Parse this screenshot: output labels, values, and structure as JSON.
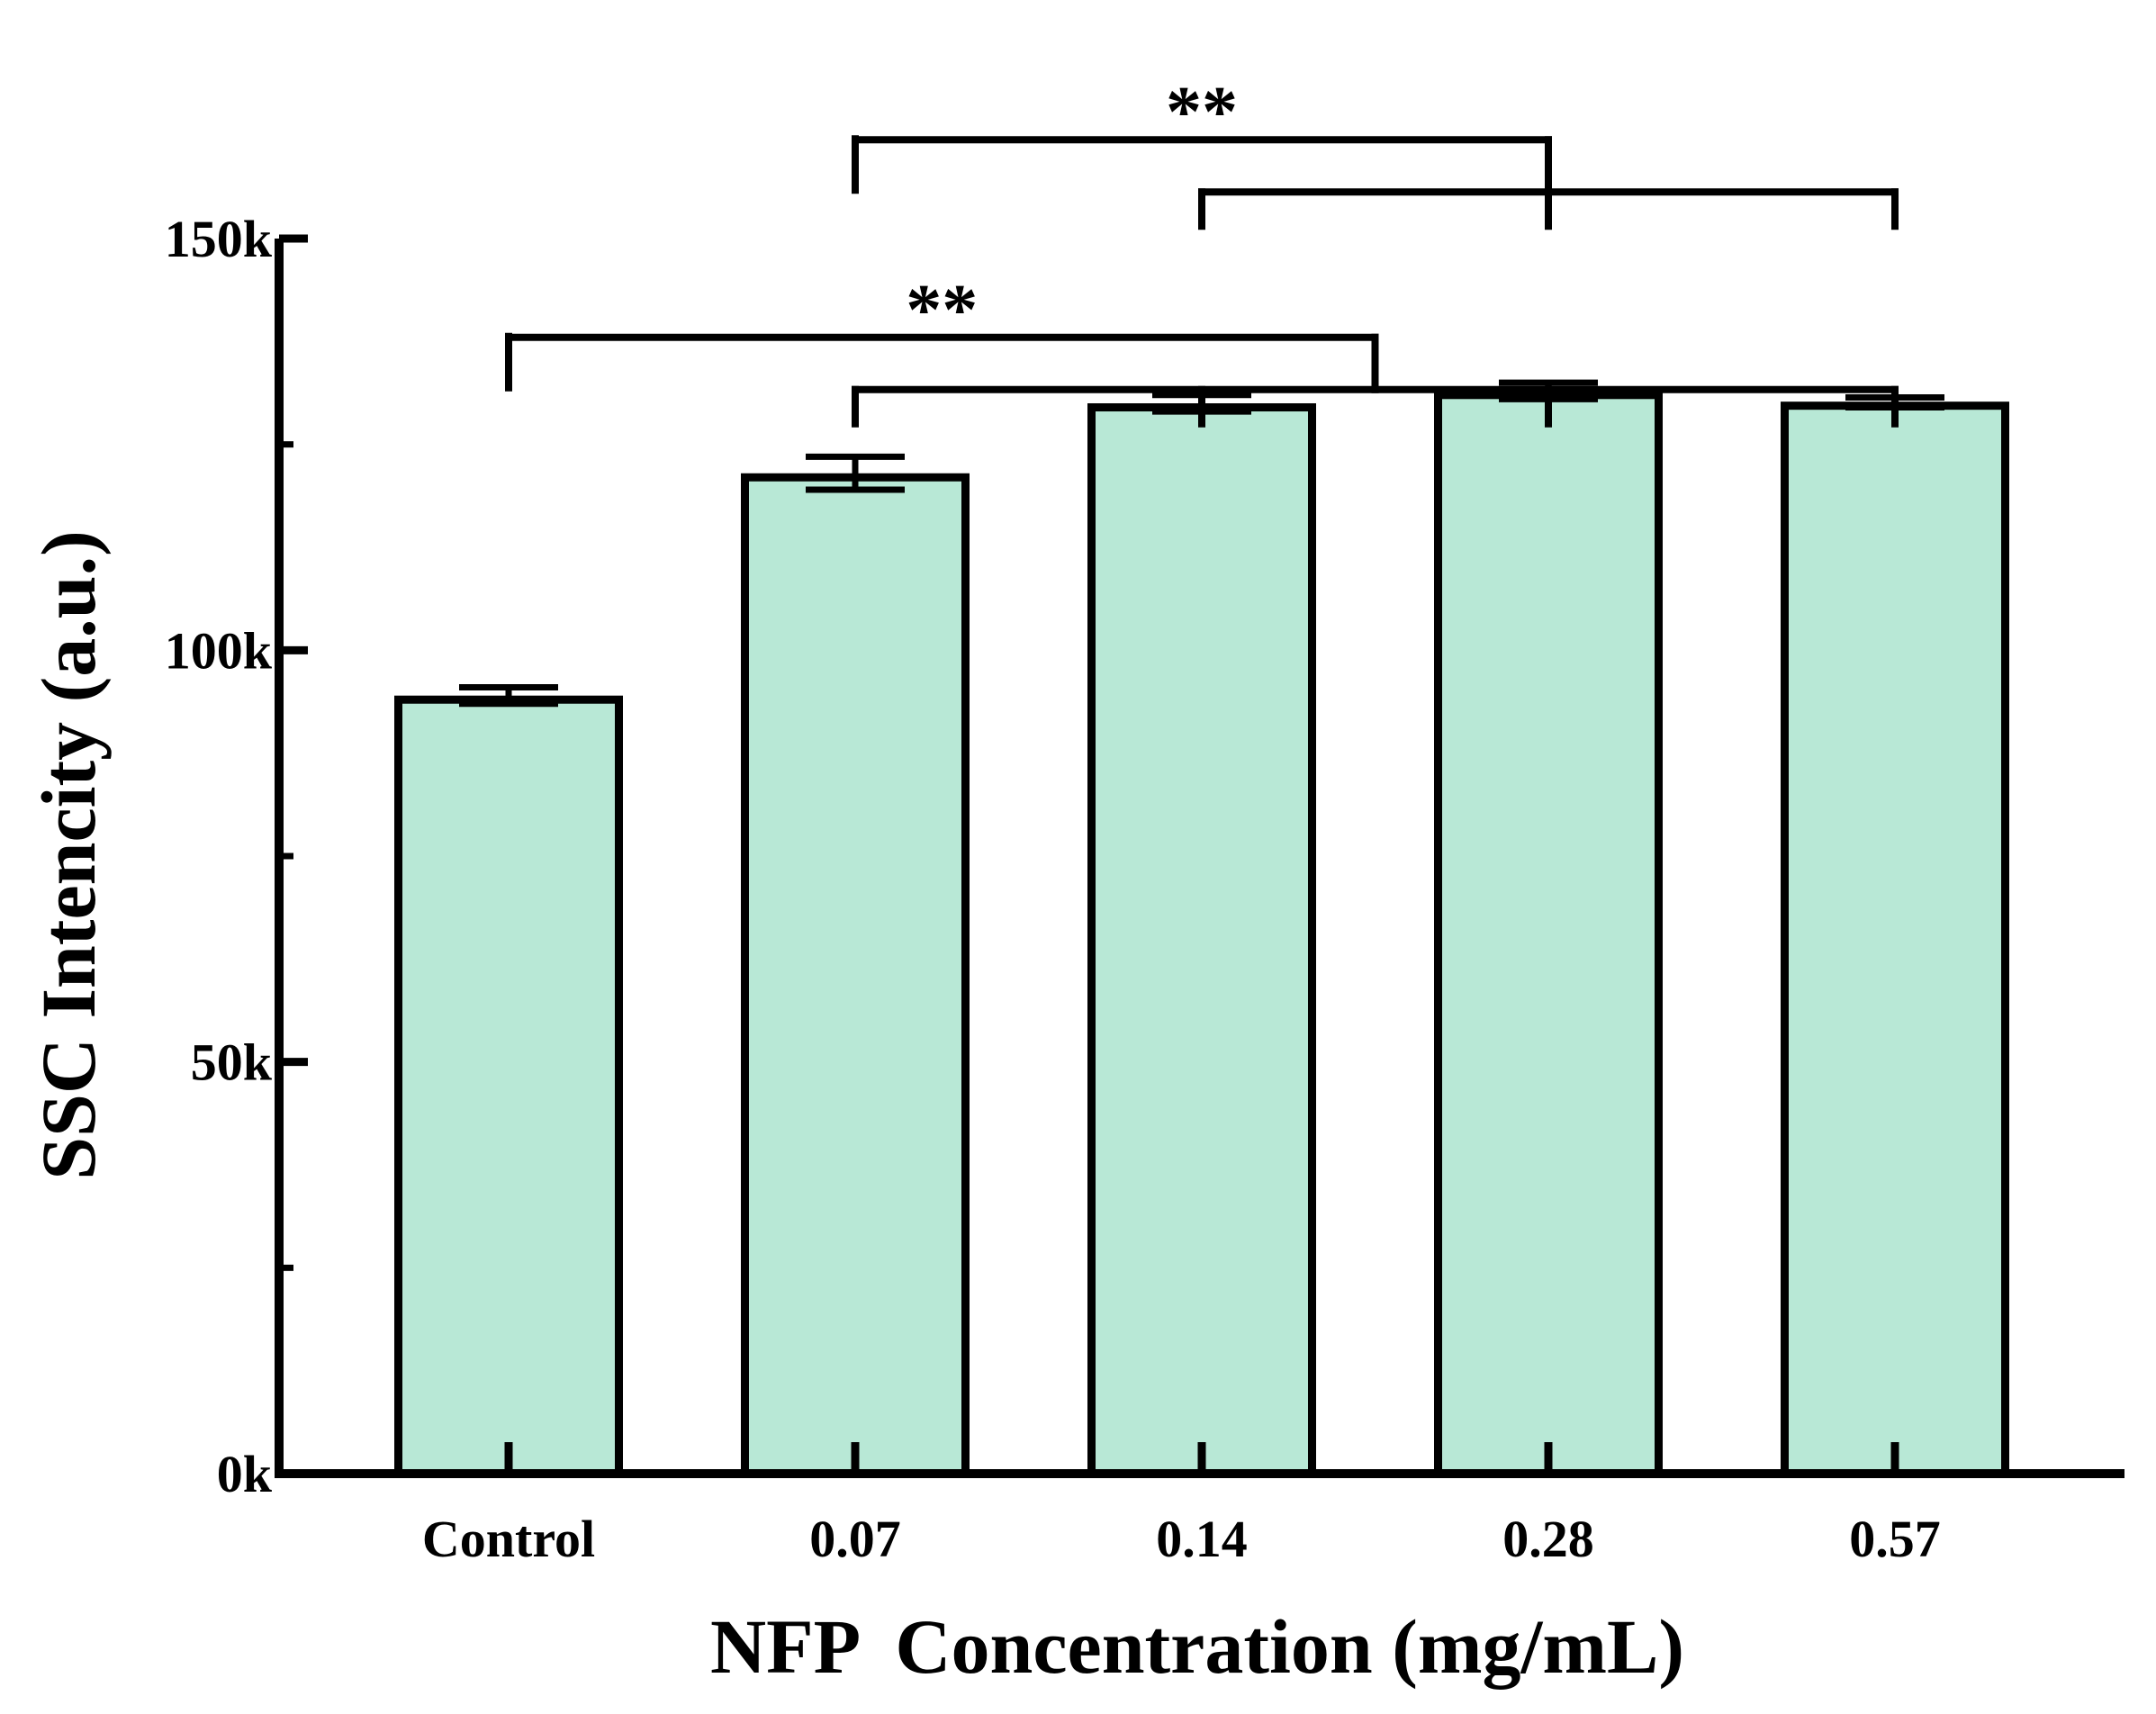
{
  "chart_data": {
    "type": "bar",
    "title": "",
    "xlabel": "NFP  Concentration (mg/mL)",
    "ylabel": "SSC Intencity (a.u.)",
    "categories": [
      "Control",
      "0.07",
      "0.14",
      "0.28",
      "0.57"
    ],
    "values": [
      94000,
      121000,
      129500,
      131000,
      129700
    ],
    "error_upper": [
      1500,
      2500,
      1500,
      1500,
      1000
    ],
    "error_lower": [
      500,
      1500,
      500,
      500,
      200
    ],
    "ylim": [
      0,
      150000
    ],
    "yticks": [
      0,
      50000,
      100000,
      150000
    ],
    "ytick_labels": [
      "0k",
      "50k",
      "100k",
      "150k"
    ],
    "minor_yticks": [
      25000,
      75000,
      125000
    ],
    "bar_color": "#b8e8d6",
    "edge_color": "#000000",
    "significance": [
      {
        "label": "**",
        "from": [
          0
        ],
        "to": [
          1,
          2,
          3,
          4
        ],
        "level": 138000
      },
      {
        "label": "**",
        "from": [
          1
        ],
        "to": [
          2,
          3,
          4
        ],
        "level": 162000
      }
    ],
    "grid": false,
    "legend": "none"
  }
}
